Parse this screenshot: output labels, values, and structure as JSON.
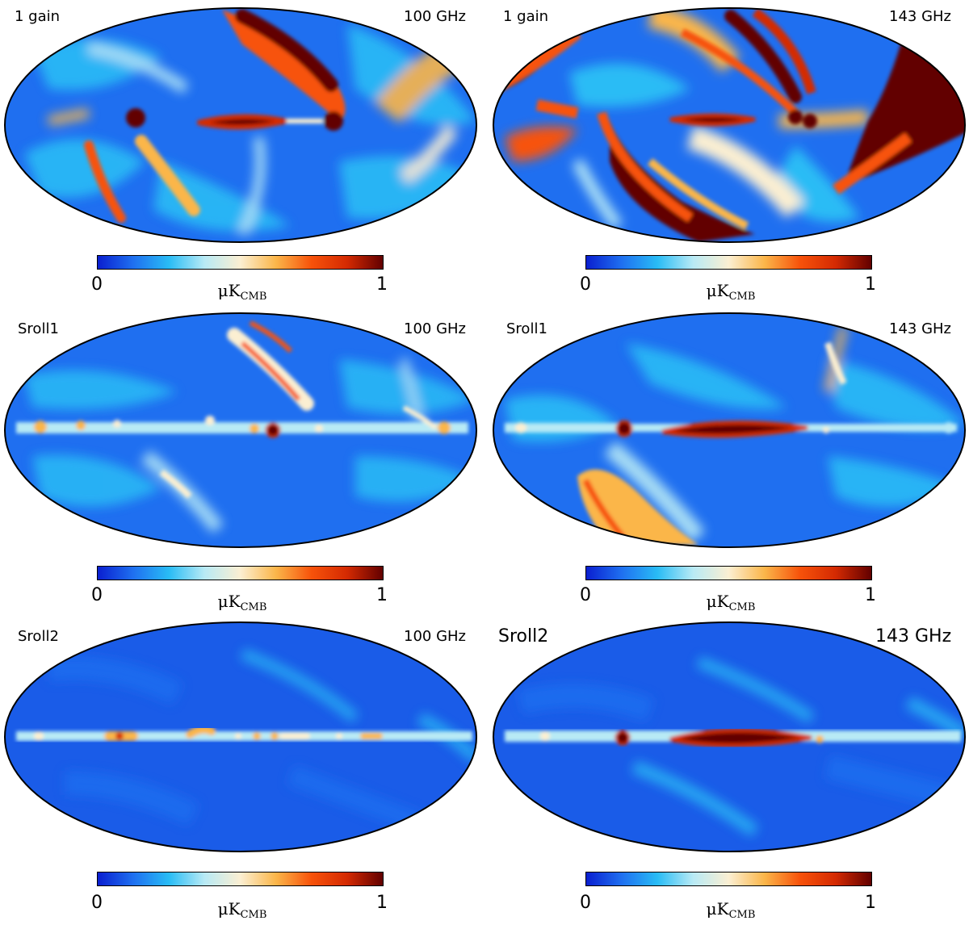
{
  "colormap": {
    "stops": [
      "#0a1fd0",
      "#1f70f0",
      "#29bcf5",
      "#b8eaf5",
      "#fbefd2",
      "#fbb64a",
      "#f7520a",
      "#d42a02",
      "#620000"
    ],
    "tick_min": "0",
    "tick_max": "1",
    "unit_main": "μK",
    "unit_sub": "CMB"
  },
  "panels": [
    {
      "label": "1 gain",
      "freq": "100 GHz",
      "pattern": "gain100"
    },
    {
      "label": "1 gain",
      "freq": "143 GHz",
      "pattern": "gain143"
    },
    {
      "label": "Sroll1",
      "freq": "100 GHz",
      "pattern": "sroll1_100"
    },
    {
      "label": "Sroll1",
      "freq": "143 GHz",
      "pattern": "sroll1_143"
    },
    {
      "label": "Sroll2",
      "freq": "100 GHz",
      "pattern": "sroll2_100"
    },
    {
      "label": "Sroll2",
      "freq": "143 GHz",
      "pattern": "sroll2_143"
    }
  ]
}
